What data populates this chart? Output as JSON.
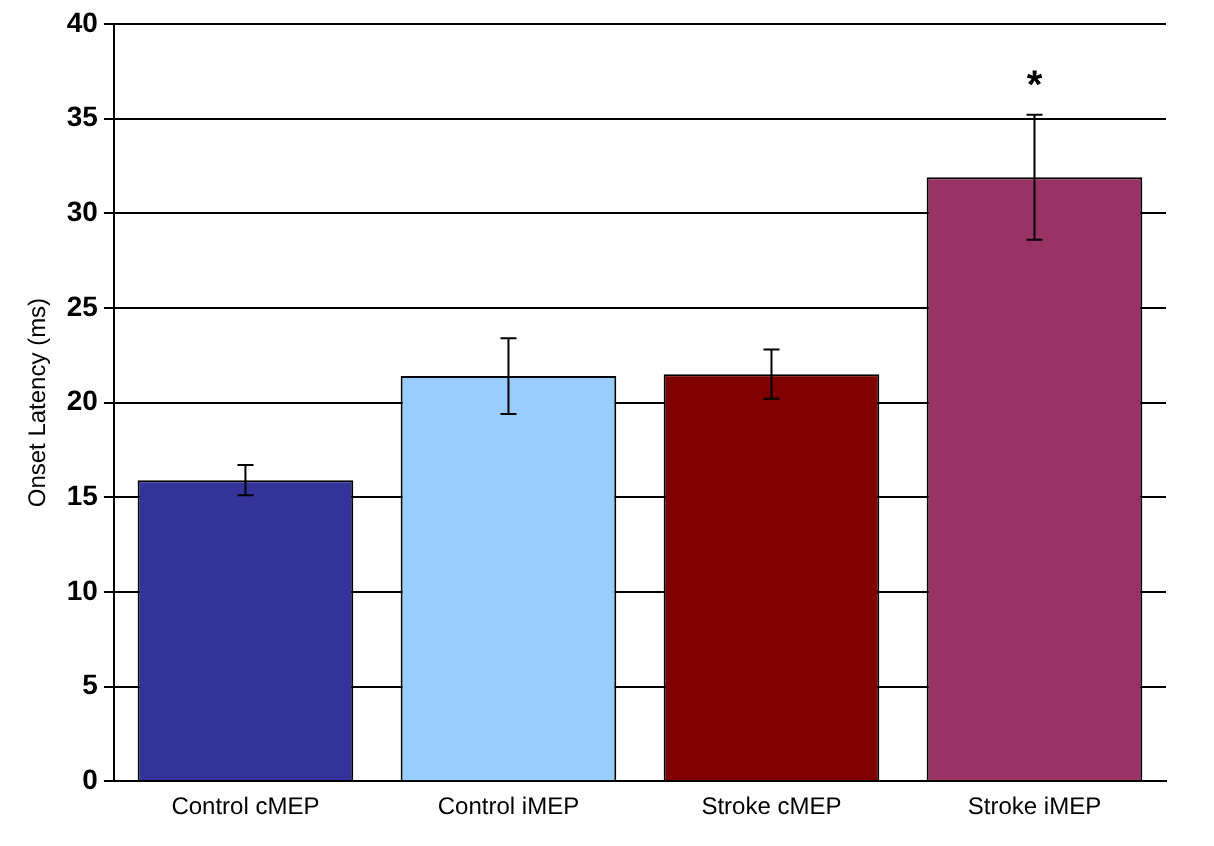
{
  "chart_data": {
    "type": "bar",
    "ylabel": "Onset Latency (ms)",
    "categories": [
      "Control cMEP",
      "Control iMEP",
      "Stroke cMEP",
      "Stroke iMEP"
    ],
    "values": [
      15.9,
      21.4,
      21.5,
      31.9
    ],
    "colors": [
      "#333399",
      "#99ccff",
      "#800000",
      "#993366"
    ],
    "errors": [
      0.8,
      2.0,
      1.3,
      3.3
    ],
    "ylim": [
      0,
      40
    ],
    "yticks": [
      0,
      5,
      10,
      15,
      20,
      25,
      30,
      35,
      40
    ],
    "grid": "y",
    "legend": false,
    "annotations": [
      "*"
    ]
  }
}
